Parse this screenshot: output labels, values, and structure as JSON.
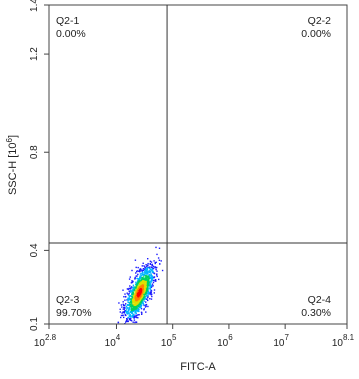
{
  "chart_data": {
    "type": "scatter",
    "xlabel": "FITC-A",
    "ylabel_main": "SSC-H [10",
    "ylabel_exp": "6",
    "ylabel_end": "]",
    "x_scale": "log",
    "xlim": [
      631,
      125893000
    ],
    "ylim": [
      0.1,
      1.4
    ],
    "x_ticks": [
      {
        "value": 631,
        "base": "10",
        "exp": "2.8"
      },
      {
        "value": 10000,
        "base": "10",
        "exp": "4"
      },
      {
        "value": 100000,
        "base": "10",
        "exp": "5"
      },
      {
        "value": 1000000,
        "base": "10",
        "exp": "6"
      },
      {
        "value": 10000000,
        "base": "10",
        "exp": "7"
      },
      {
        "value": 125893000,
        "base": "10",
        "exp": "8.1"
      }
    ],
    "y_ticks": [
      {
        "value": 0.1,
        "label": "0.1"
      },
      {
        "value": 0.4,
        "label": "0.4"
      },
      {
        "value": 0.8,
        "label": "0.8"
      },
      {
        "value": 1.2,
        "label": "1.2"
      },
      {
        "value": 1.4,
        "label": "1.4"
      }
    ],
    "gate": {
      "x": 79400,
      "y": 0.43
    },
    "quadrants": [
      {
        "id": "Q2-1",
        "percent": "0.00%",
        "position": "top-left"
      },
      {
        "id": "Q2-2",
        "percent": "0.00%",
        "position": "top-right"
      },
      {
        "id": "Q2-3",
        "percent": "99.70%",
        "position": "bottom-left"
      },
      {
        "id": "Q2-4",
        "percent": "0.30%",
        "position": "bottom-right"
      }
    ],
    "population": {
      "center_x": 25000,
      "center_y": 0.23,
      "spread_log_x": 0.13,
      "spread_y": 0.07,
      "tilt": 0.55,
      "count": 1400
    },
    "density_colors": [
      "#1a1aff",
      "#00b4ff",
      "#00d060",
      "#e0e000",
      "#ff8000",
      "#ff0000"
    ]
  }
}
